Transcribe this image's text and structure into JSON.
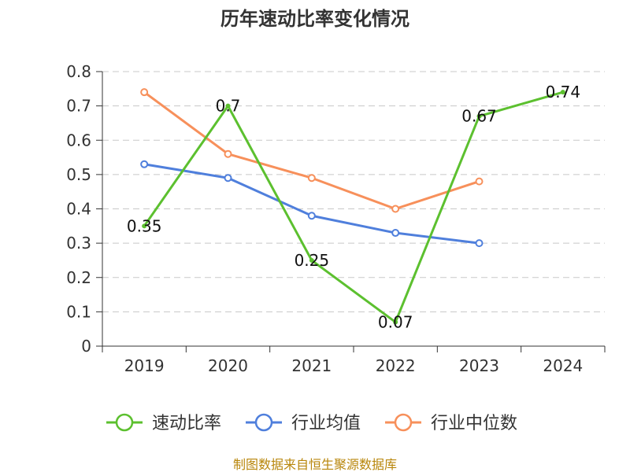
{
  "chart_data": {
    "type": "line",
    "title": "历年速动比率变化情况",
    "categories": [
      "2019",
      "2020",
      "2021",
      "2022",
      "2023",
      "2024"
    ],
    "ylim": [
      0,
      0.8
    ],
    "yticks": [
      "0",
      "0.1",
      "0.2",
      "0.3",
      "0.4",
      "0.5",
      "0.6",
      "0.7",
      "0.8"
    ],
    "grid": true,
    "legend_position": "bottom",
    "series": [
      {
        "name": "速动比率",
        "color": "#5cc02f",
        "values": [
          0.35,
          0.7,
          0.25,
          0.07,
          0.67,
          0.74
        ],
        "labels": [
          "0.35",
          "0.7",
          "0.25",
          "0.07",
          "0.67",
          "0.74"
        ]
      },
      {
        "name": "行业均值",
        "color": "#4f7fdc",
        "values": [
          0.53,
          0.49,
          0.38,
          0.33,
          0.3,
          null
        ]
      },
      {
        "name": "行业中位数",
        "color": "#f7905b",
        "values": [
          0.74,
          0.56,
          0.49,
          0.4,
          0.48,
          null
        ]
      }
    ]
  },
  "source": "制图数据来自恒生聚源数据库"
}
